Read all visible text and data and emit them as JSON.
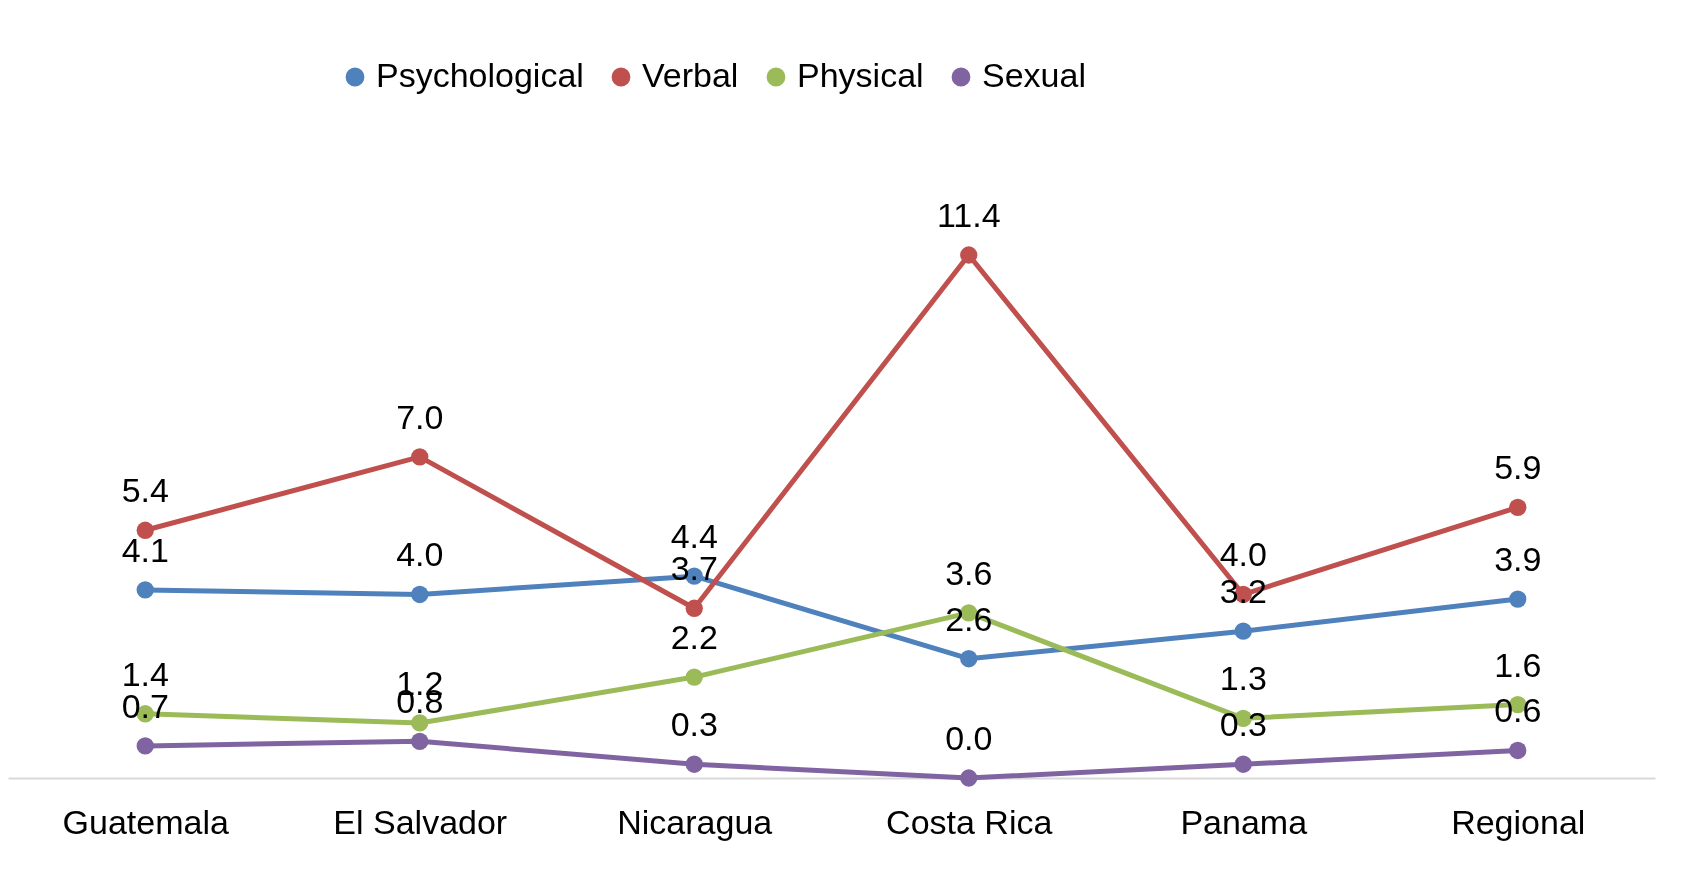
{
  "chart_data": {
    "type": "line",
    "categories": [
      "Guatemala",
      "El Salvador",
      "Nicaragua",
      "Costa Rica",
      "Panama",
      "Regional"
    ],
    "series": [
      {
        "name": "Psychological",
        "color": "#4f81bd",
        "values": [
          4.1,
          4.0,
          4.4,
          2.6,
          3.2,
          3.9
        ],
        "value_labels": [
          "4.1",
          "4.0",
          "4.4",
          "2.6",
          "3.2",
          "3.9"
        ]
      },
      {
        "name": "Verbal",
        "color": "#c0504d",
        "values": [
          5.4,
          7.0,
          3.7,
          11.4,
          4.0,
          5.9
        ],
        "value_labels": [
          "5.4",
          "7.0",
          "3.7",
          "11.4",
          "4.0",
          "5.9"
        ]
      },
      {
        "name": "Physical",
        "color": "#9bbb59",
        "values": [
          1.4,
          1.2,
          2.2,
          3.6,
          1.3,
          1.6
        ],
        "value_labels": [
          "1.4",
          "1.2",
          "2.2",
          "3.6",
          "1.3",
          "1.6"
        ]
      },
      {
        "name": "Sexual",
        "color": "#8064a2",
        "values": [
          0.7,
          0.8,
          0.3,
          0.0,
          0.3,
          0.6
        ],
        "value_labels": [
          "0.7",
          "0.8",
          "0.3",
          "0.0",
          "0.3",
          "0.6"
        ]
      }
    ],
    "legend": "top",
    "marker": "circle",
    "line_style": "solid",
    "grid": false,
    "tick_labels": "x"
  }
}
